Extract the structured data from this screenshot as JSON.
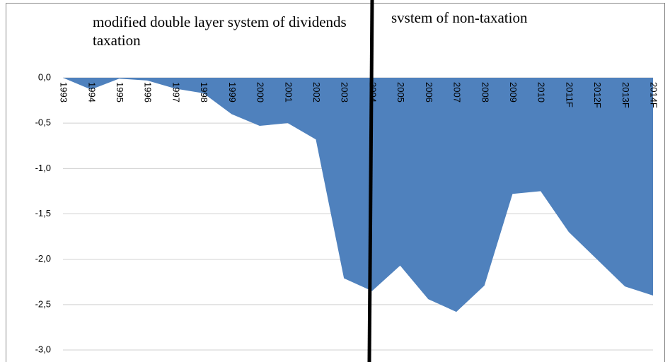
{
  "chart_data": {
    "type": "area",
    "annotations": [
      "modified double layer system of dividends taxation",
      "svstem of non-taxation"
    ],
    "categories": [
      "1993",
      "1994",
      "1995",
      "1996",
      "1997",
      "1998",
      "1999",
      "2000",
      "2001",
      "2002",
      "2003",
      "2004",
      "2005",
      "2006",
      "2007",
      "2008",
      "2009",
      "2010",
      "2011F",
      "2012F",
      "2013F",
      "2014F"
    ],
    "values": [
      0.0,
      -0.13,
      -0.01,
      -0.03,
      -0.12,
      -0.17,
      -0.4,
      -0.53,
      -0.5,
      -0.68,
      -2.21,
      -2.35,
      -2.07,
      -2.44,
      -2.58,
      -2.29,
      -1.28,
      -1.25,
      -1.7,
      -2.0,
      -2.3,
      -2.4
    ],
    "color": "#4f81bd",
    "ylim": [
      -3,
      0
    ],
    "yticks": [
      {
        "value": 0,
        "label": "0,0"
      },
      {
        "value": -0.5,
        "label": "-0,5"
      },
      {
        "value": -1,
        "label": "-1,0"
      },
      {
        "value": -1.5,
        "label": "-1,5"
      },
      {
        "value": -2,
        "label": "-2,0"
      },
      {
        "value": -2.5,
        "label": "-2,5"
      },
      {
        "value": -3,
        "label": "-3,0"
      }
    ],
    "grid": true
  }
}
